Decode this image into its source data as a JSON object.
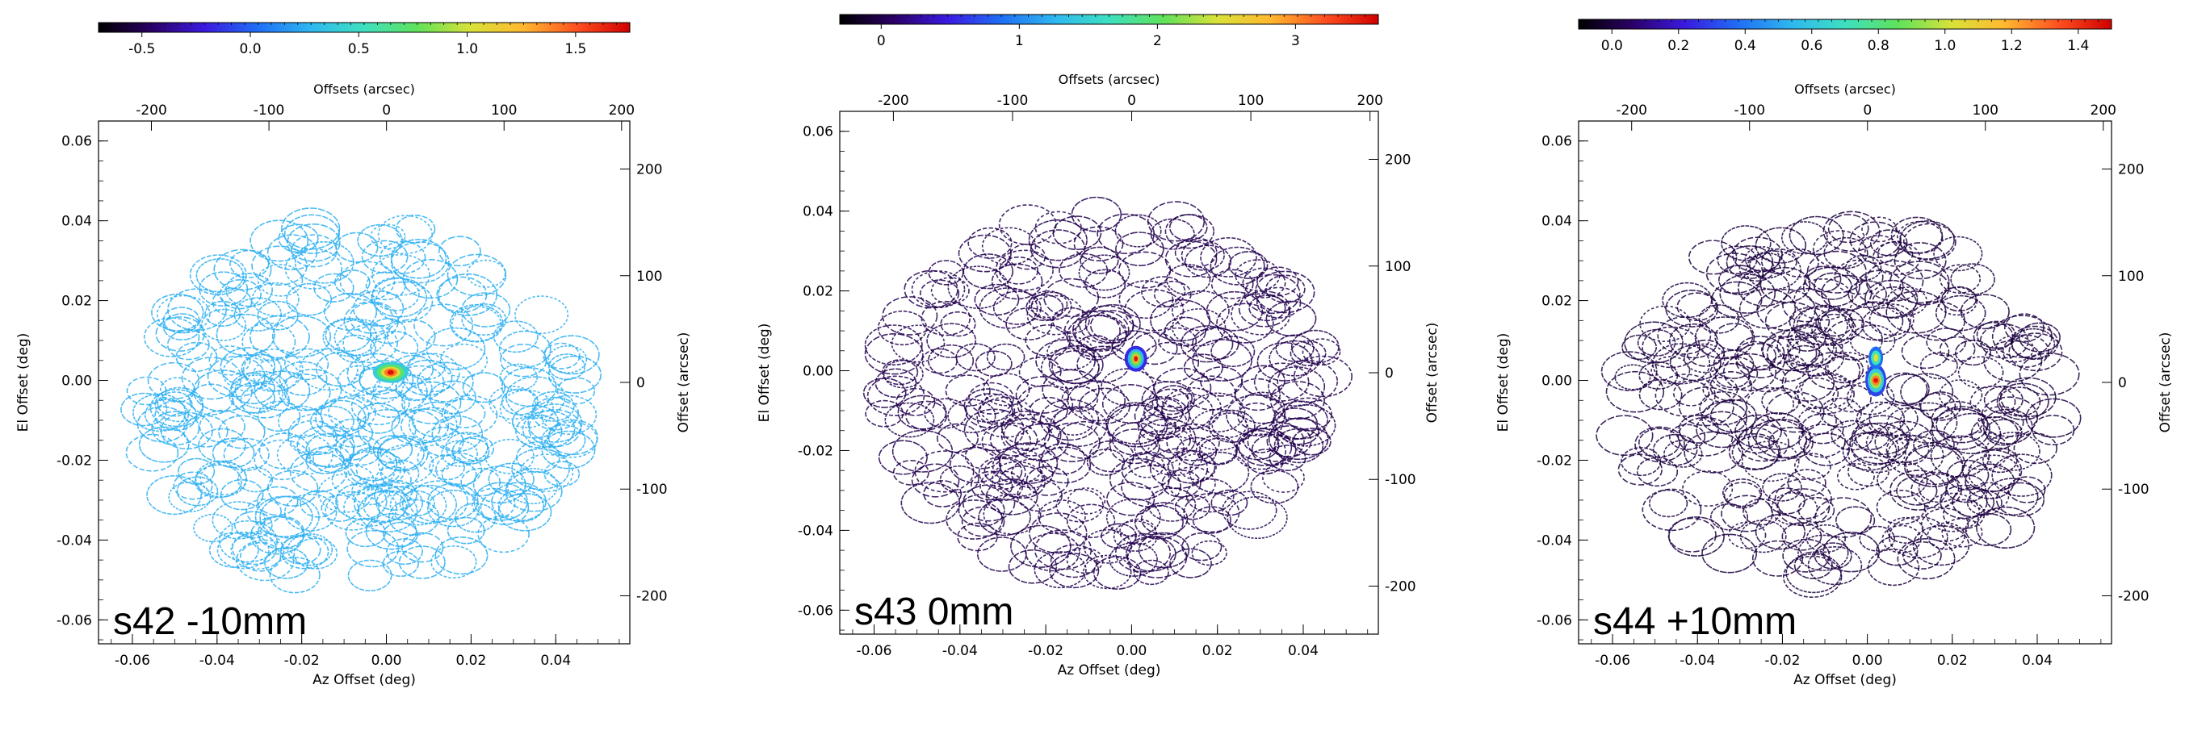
{
  "colorscales": {
    "rainbow": [
      "#000000",
      "#2b0066",
      "#3a1ae0",
      "#1f6ff5",
      "#2fb8f0",
      "#3ee0c0",
      "#5fe25a",
      "#d8e23a",
      "#ffb830",
      "#ff5020",
      "#d00000"
    ],
    "purple_base": "#3d0a4e",
    "cold_base": "#3b74ea"
  },
  "chart_data": [
    {
      "id": "s42",
      "type": "heatmap",
      "label": "s42 -10mm",
      "colorbar": {
        "range": [
          -0.7,
          1.75
        ],
        "ticks": [
          "-0.5",
          "0.0",
          "0.5",
          "1.0",
          "1.5"
        ],
        "tick_values": [
          -0.5,
          0.0,
          0.5,
          1.0,
          1.5
        ]
      },
      "top_axis": {
        "label": "Offsets (arcsec)",
        "ticks": [
          "-200",
          "-100",
          "0",
          "100",
          "200"
        ],
        "tick_values": [
          -200,
          -100,
          0,
          100,
          200
        ],
        "lim": [
          -245,
          207
        ]
      },
      "right_axis": {
        "label": "Offset (arcsec)",
        "ticks": [
          "200",
          "100",
          "0",
          "-100",
          "-200"
        ],
        "tick_values": [
          200,
          100,
          0,
          -100,
          -200
        ],
        "lim": [
          -245,
          245
        ]
      },
      "xaxis": {
        "label": "Az Offset (deg)",
        "ticks": [
          "-0.06",
          "-0.04",
          "-0.02",
          "0.00",
          "0.02",
          "0.04"
        ],
        "tick_values": [
          -0.06,
          -0.04,
          -0.02,
          0.0,
          0.02,
          0.04
        ],
        "lim": [
          -0.068,
          0.0575
        ]
      },
      "yaxis": {
        "label": "El Offset (deg)",
        "ticks": [
          "0.06",
          "0.04",
          "0.02",
          "0.00",
          "-0.02",
          "-0.04",
          "-0.06"
        ],
        "tick_values": [
          0.06,
          0.04,
          0.02,
          0.0,
          -0.02,
          -0.04,
          -0.06
        ],
        "lim": [
          -0.066,
          0.065
        ]
      },
      "source": {
        "az": 0.001,
        "el": 0.002,
        "peak": 1.7,
        "shape": "elongated"
      },
      "background_level": 0.25
    },
    {
      "id": "s43",
      "type": "heatmap",
      "label": "s43 0mm",
      "colorbar": {
        "range": [
          -0.3,
          3.6
        ],
        "ticks": [
          "0",
          "1",
          "2",
          "3"
        ],
        "tick_values": [
          0,
          1,
          2,
          3
        ]
      },
      "top_axis": {
        "label": "Offsets (arcsec)",
        "ticks": [
          "-200",
          "-100",
          "0",
          "100",
          "200"
        ],
        "tick_values": [
          -200,
          -100,
          0,
          100,
          200
        ],
        "lim": [
          -245,
          207
        ]
      },
      "right_axis": {
        "label": "Offset (arcsec)",
        "ticks": [
          "200",
          "100",
          "0",
          "-100",
          "-200"
        ],
        "tick_values": [
          200,
          100,
          0,
          -100,
          -200
        ],
        "lim": [
          -245,
          245
        ]
      },
      "xaxis": {
        "label": "Az Offset (deg)",
        "ticks": [
          "-0.06",
          "-0.04",
          "-0.02",
          "0.00",
          "0.02",
          "0.04"
        ],
        "tick_values": [
          -0.06,
          -0.04,
          -0.02,
          0.0,
          0.02,
          0.04
        ],
        "lim": [
          -0.068,
          0.0575
        ]
      },
      "yaxis": {
        "label": "El Offset (deg)",
        "ticks": [
          "0.06",
          "0.04",
          "0.02",
          "0.00",
          "-0.02",
          "-0.04",
          "-0.06"
        ],
        "tick_values": [
          0.06,
          0.04,
          0.02,
          0.0,
          -0.02,
          -0.04,
          -0.06
        ],
        "lim": [
          -0.066,
          0.065
        ]
      },
      "source": {
        "az": 0.001,
        "el": 0.003,
        "peak": 3.5,
        "shape": "compact"
      },
      "background_level": 0.0
    },
    {
      "id": "s44",
      "type": "heatmap",
      "label": "s44 +10mm",
      "colorbar": {
        "range": [
          -0.1,
          1.5
        ],
        "ticks": [
          "0.0",
          "0.2",
          "0.4",
          "0.6",
          "0.8",
          "1.0",
          "1.2",
          "1.4"
        ],
        "tick_values": [
          0.0,
          0.2,
          0.4,
          0.6,
          0.8,
          1.0,
          1.2,
          1.4
        ]
      },
      "top_axis": {
        "label": "Offsets (arcsec)",
        "ticks": [
          "-200",
          "-100",
          "0",
          "100",
          "200"
        ],
        "tick_values": [
          -200,
          -100,
          0,
          100,
          200
        ],
        "lim": [
          -245,
          207
        ]
      },
      "right_axis": {
        "label": "Offset (arcsec)",
        "ticks": [
          "200",
          "100",
          "0",
          "-100",
          "-200"
        ],
        "tick_values": [
          200,
          100,
          0,
          -100,
          -200
        ],
        "lim": [
          -245,
          245
        ]
      },
      "xaxis": {
        "label": "Az Offset (deg)",
        "ticks": [
          "-0.06",
          "-0.04",
          "-0.02",
          "0.00",
          "0.02",
          "0.04"
        ],
        "tick_values": [
          -0.06,
          -0.04,
          -0.02,
          0.0,
          0.02,
          0.04
        ],
        "lim": [
          -0.068,
          0.0575
        ]
      },
      "yaxis": {
        "label": "El Offset (deg)",
        "ticks": [
          "0.06",
          "0.04",
          "0.02",
          "0.00",
          "-0.02",
          "-0.04",
          "-0.06"
        ],
        "tick_values": [
          0.06,
          0.04,
          0.02,
          0.0,
          -0.02,
          -0.04,
          -0.06
        ],
        "lim": [
          -0.066,
          0.065
        ]
      },
      "source": {
        "az": 0.002,
        "el": 0.0,
        "peak": 1.45,
        "shape": "double-vertical"
      },
      "background_level": 0.0
    }
  ]
}
